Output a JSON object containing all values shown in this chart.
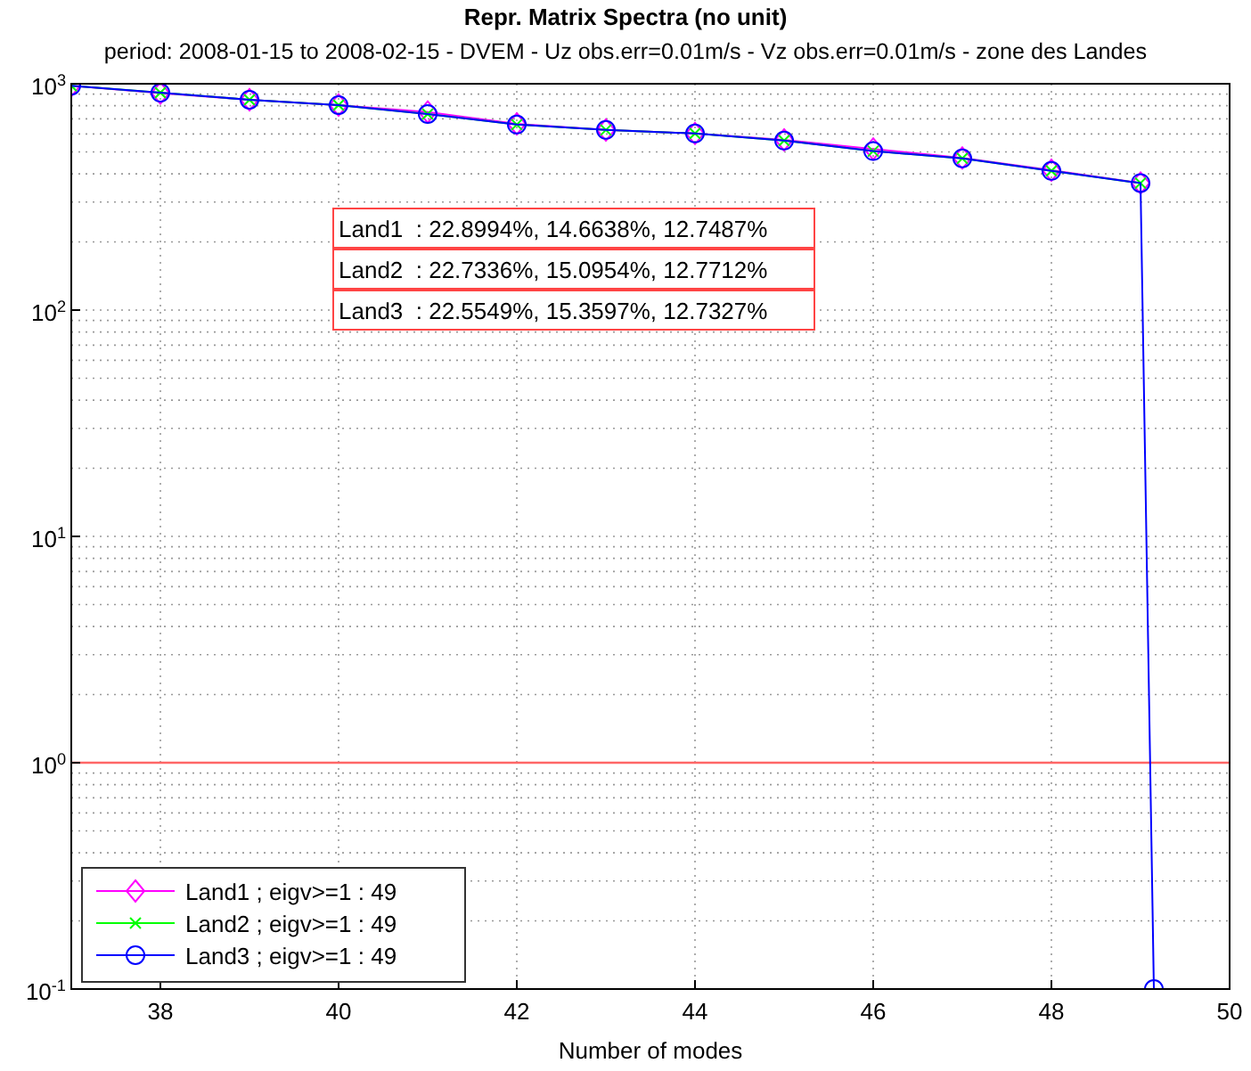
{
  "chart_data": {
    "type": "line",
    "title": "Repr. Matrix Spectra (no unit)",
    "subtitle": "period: 2008-01-15 to 2008-02-15 - DVEM - Uz obs.err=0.01m/s - Vz obs.err=0.01m/s - zone des Landes",
    "xlabel": "Number of modes",
    "x": [
      37,
      38,
      39,
      40,
      41,
      42,
      43,
      44,
      45,
      46,
      47,
      48,
      49
    ],
    "series": [
      {
        "name": "Land1 ; eigv>=1 : 49",
        "color": "#ff00ff",
        "marker": "diamond",
        "values": [
          980,
          910,
          850,
          805,
          750,
          665,
          625,
          603,
          565,
          515,
          470,
          415,
          364
        ]
      },
      {
        "name": "Land2 ; eigv>=1 : 49",
        "color": "#00ff00",
        "marker": "cross",
        "values": [
          980,
          913,
          850,
          805,
          735,
          660,
          625,
          603,
          561,
          504,
          468,
          412,
          364
        ]
      },
      {
        "name": "Land3 ; eigv>=1 : 49",
        "color": "#0000ff",
        "marker": "circle",
        "x": [
          37,
          38,
          39,
          40,
          41,
          42,
          43,
          44,
          45,
          46,
          47,
          48,
          49,
          49.15
        ],
        "values": [
          980,
          913,
          850,
          805,
          735,
          660,
          625,
          603,
          561,
          504,
          468,
          412,
          364,
          0.1
        ]
      }
    ],
    "log": "y",
    "xlim": [
      37,
      50
    ],
    "xticks": [
      38,
      40,
      42,
      44,
      46,
      48,
      50
    ],
    "ylim": [
      0.1,
      1000
    ],
    "yticks": [
      {
        "value": 0.1,
        "label": "10$^{-1}$"
      },
      {
        "value": 1,
        "label": "10$^{0}$"
      },
      {
        "value": 10,
        "label": "10$^{1}$"
      },
      {
        "value": 100,
        "label": "10$^{2}$"
      },
      {
        "value": 1000,
        "label": "10$^{3}$"
      }
    ],
    "ref_lines": [
      {
        "axis": "y",
        "value": 1,
        "color": "#ff6666"
      }
    ],
    "annotations": [
      "Land1  : 22.8994%, 14.6638%, 12.7487%",
      "Land2  : 22.7336%, 15.0954%, 12.7712%",
      "Land3  : 22.5549%, 15.3597%, 12.7327%"
    ],
    "grid": true,
    "legend": "bottom left",
    "line_style": "solid"
  }
}
